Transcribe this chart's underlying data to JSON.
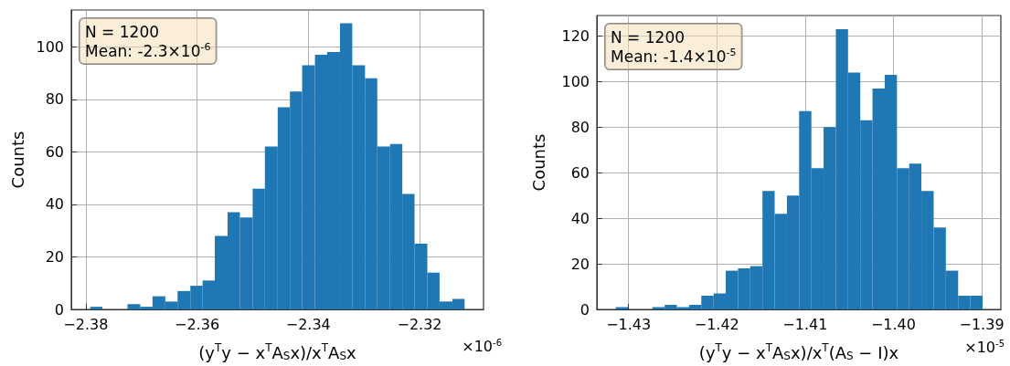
{
  "chart_data": [
    {
      "type": "histogram",
      "xlabel": "(y$^{T}$y − x$^{T}$A$_{S}$x)/x$^{T}$A$_{S}$x",
      "ylabel": "Counts",
      "color": "#1f77b4",
      "annotations": [
        "N = 1200",
        "Mean: -2.3×10$^{-6}$",
        "×10$^{-6}$"
      ],
      "bins": [
        -2.3792,
        -2.377,
        -2.3725,
        -2.3702,
        -2.368,
        -2.3657,
        -2.3635,
        -2.3612,
        -2.359,
        -2.3568,
        -2.3545,
        -2.3523,
        -2.35,
        -2.3478,
        -2.3455,
        -2.3433,
        -2.3411,
        -2.3388,
        -2.3366,
        -2.3343,
        -2.3321,
        -2.3298,
        -2.3276,
        -2.3253,
        -2.3231,
        -2.3209,
        -2.3186,
        -2.3164,
        -2.3141,
        -2.3119
      ],
      "values": [
        1,
        0,
        2,
        1,
        5,
        3,
        7,
        9,
        11,
        28,
        37,
        35,
        46,
        62,
        77,
        83,
        93,
        97,
        98,
        109,
        93,
        88,
        62,
        63,
        44,
        25,
        14,
        3,
        4
      ],
      "xlim": [
        -2.3826,
        -2.3085
      ],
      "xticks": [
        {
          "value": -2.38,
          "label": "−2.38"
        },
        {
          "value": -2.36,
          "label": "−2.36"
        },
        {
          "value": -2.34,
          "label": "−2.34"
        },
        {
          "value": -2.32,
          "label": "−2.32"
        }
      ],
      "ylim": [
        0,
        114
      ],
      "yticks": [
        0,
        20,
        40,
        60,
        80,
        100
      ],
      "grid": true
    },
    {
      "type": "histogram",
      "xlabel": "(y$^{T}$y − x$^{T}$A$_{S}$x)/x$^{T}$(A$_{S}$ − I)x",
      "ylabel": "Counts",
      "color": "#1f77b4",
      "annotations": [
        "N = 1200",
        "Mean: -1.4×10$^{-5}$",
        "×10$^{-5}$"
      ],
      "bins": [
        -1.43145,
        -1.43007,
        -1.4273,
        -1.42591,
        -1.42453,
        -1.42314,
        -1.42176,
        -1.42037,
        -1.41899,
        -1.4176,
        -1.41622,
        -1.41483,
        -1.41345,
        -1.41206,
        -1.41068,
        -1.40929,
        -1.40791,
        -1.40652,
        -1.40514,
        -1.40375,
        -1.40237,
        -1.40098,
        -1.3996,
        -1.39821,
        -1.39683,
        -1.39544,
        -1.39406,
        -1.39267,
        -1.39129,
        -1.3899
      ],
      "values": [
        1,
        0,
        1,
        2,
        1,
        2,
        6,
        7,
        17,
        18,
        19,
        52,
        42,
        50,
        87,
        62,
        80,
        123,
        104,
        83,
        97,
        103,
        62,
        64,
        52,
        36,
        17,
        6,
        6
      ],
      "xlim": [
        -1.43359,
        -1.38783
      ],
      "xticks": [
        {
          "value": -1.43,
          "label": "−1.43"
        },
        {
          "value": -1.42,
          "label": "−1.42"
        },
        {
          "value": -1.41,
          "label": "−1.41"
        },
        {
          "value": -1.4,
          "label": "−1.40"
        },
        {
          "value": -1.39,
          "label": "−1.39"
        }
      ],
      "ylim": [
        0,
        129
      ],
      "yticks": [
        0,
        20,
        40,
        60,
        80,
        100,
        120
      ],
      "grid": true
    }
  ]
}
